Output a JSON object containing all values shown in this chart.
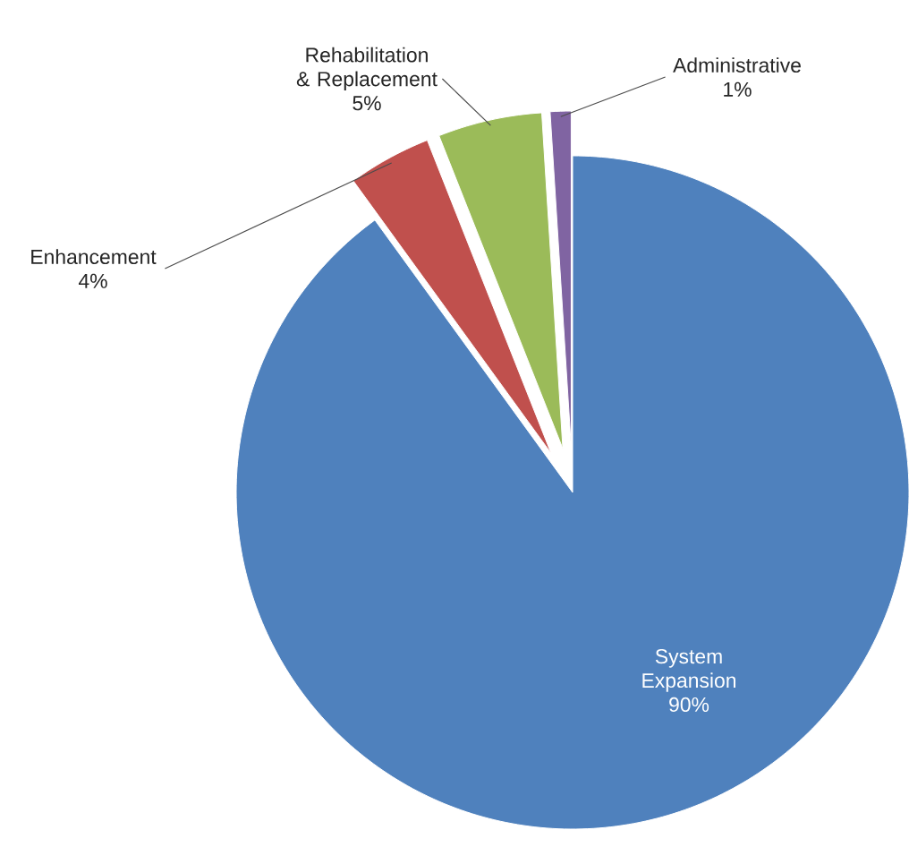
{
  "chart_data": {
    "type": "pie",
    "categories": [
      "System Expansion",
      "Enhancement",
      "Rehabilitation & Replacement",
      "Administrative"
    ],
    "values": [
      90,
      4,
      5,
      1
    ],
    "colors": [
      "#4f81bd",
      "#c0504d",
      "#9bbb59",
      "#8064a2"
    ],
    "value_labels": [
      "90%",
      "4%",
      "5%",
      "1%"
    ]
  }
}
